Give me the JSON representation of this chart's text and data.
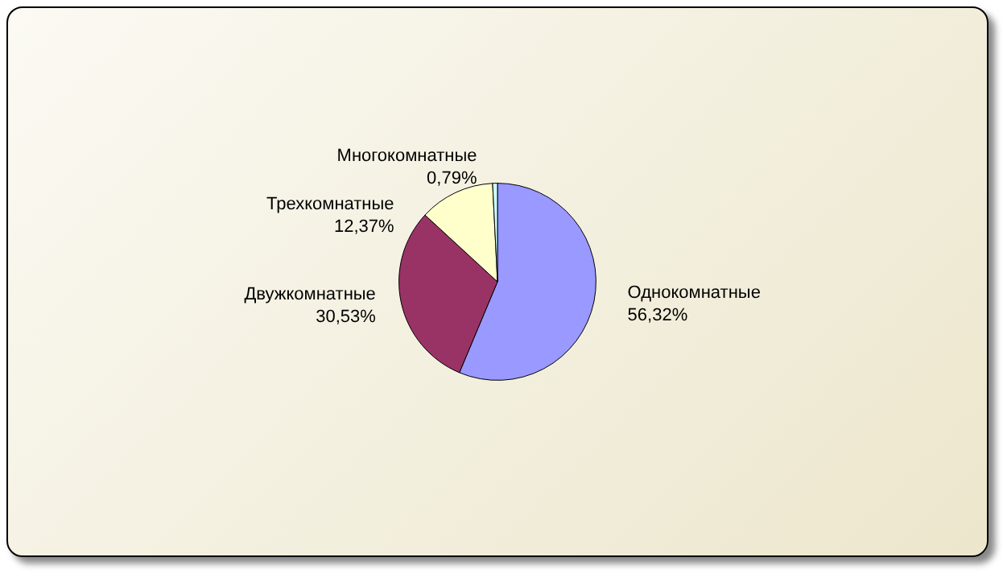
{
  "chart_data": {
    "type": "pie",
    "categories": [
      "Однокомнатные",
      "Двужкомнатные",
      "Трехкомнатные",
      "Многокомнатные"
    ],
    "values": [
      56.32,
      30.53,
      12.37,
      0.79
    ],
    "colors": [
      "#9999ff",
      "#993366",
      "#ffffcc",
      "#ccffff"
    ],
    "value_labels": [
      "56,32%",
      "30,53%",
      "12,37%",
      "0,79%"
    ],
    "legend": false
  }
}
